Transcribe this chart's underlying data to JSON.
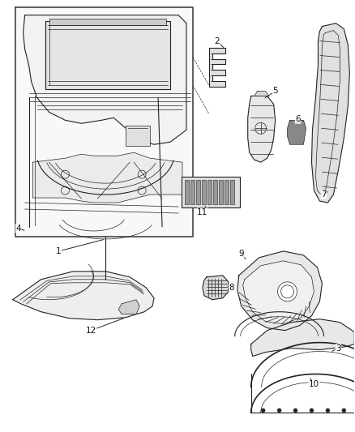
{
  "background_color": "#ffffff",
  "figsize": [
    4.38,
    5.33
  ],
  "dpi": 100,
  "line_color": "#222222",
  "label_fontsize": 7.5,
  "labels_pos": {
    "1": {
      "text": [
        0.175,
        0.595
      ],
      "target": [
        0.24,
        0.595
      ]
    },
    "2": {
      "text": [
        0.555,
        0.87
      ],
      "target": [
        0.53,
        0.855
      ]
    },
    "3": {
      "text": [
        0.945,
        0.5
      ],
      "target": [
        0.9,
        0.49
      ]
    },
    "4": {
      "text": [
        0.052,
        0.53
      ],
      "target": [
        0.09,
        0.56
      ]
    },
    "5": {
      "text": [
        0.665,
        0.82
      ],
      "target": [
        0.66,
        0.8
      ]
    },
    "6": {
      "text": [
        0.745,
        0.79
      ],
      "target": [
        0.74,
        0.775
      ]
    },
    "7": {
      "text": [
        0.83,
        0.72
      ],
      "target": [
        0.82,
        0.74
      ]
    },
    "8": {
      "text": [
        0.535,
        0.415
      ],
      "target": [
        0.525,
        0.425
      ]
    },
    "9": {
      "text": [
        0.68,
        0.49
      ],
      "target": [
        0.675,
        0.475
      ]
    },
    "10": {
      "text": [
        0.87,
        0.38
      ],
      "target": [
        0.855,
        0.4
      ]
    },
    "11": {
      "text": [
        0.54,
        0.545
      ],
      "target": [
        0.49,
        0.56
      ]
    },
    "12": {
      "text": [
        0.215,
        0.305
      ],
      "target": [
        0.21,
        0.325
      ]
    }
  }
}
